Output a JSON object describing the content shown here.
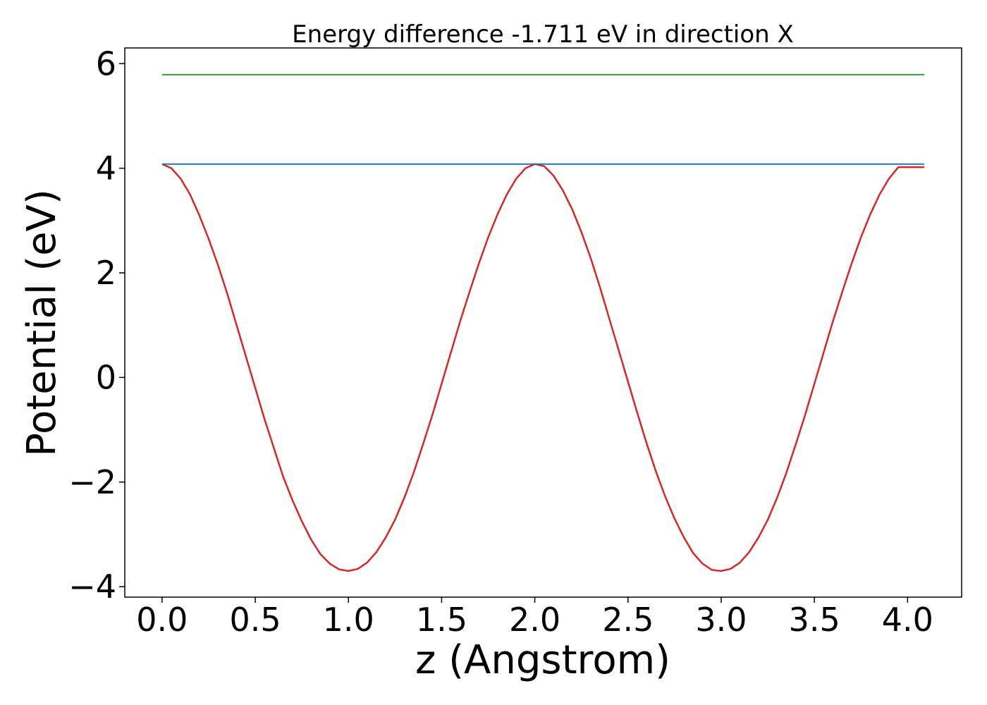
{
  "chart_data": {
    "type": "line",
    "title": "Energy difference -1.711 eV in direction X",
    "xlabel": "z (Angstrom)",
    "ylabel": "Potential (eV)",
    "xlim": [
      -0.2,
      4.29
    ],
    "ylim": [
      -4.2,
      6.3
    ],
    "xticks": [
      {
        "value": 0.0,
        "label": "0.0"
      },
      {
        "value": 0.5,
        "label": "0.5"
      },
      {
        "value": 1.0,
        "label": "1.0"
      },
      {
        "value": 1.5,
        "label": "1.5"
      },
      {
        "value": 2.0,
        "label": "2.0"
      },
      {
        "value": 2.5,
        "label": "2.5"
      },
      {
        "value": 3.0,
        "label": "3.0"
      },
      {
        "value": 3.5,
        "label": "3.5"
      },
      {
        "value": 4.0,
        "label": "4.0"
      }
    ],
    "yticks": [
      {
        "value": -4,
        "label": "−4"
      },
      {
        "value": -2,
        "label": "−2"
      },
      {
        "value": 0,
        "label": "0"
      },
      {
        "value": 2,
        "label": "2"
      },
      {
        "value": 4,
        "label": "4"
      },
      {
        "value": 6,
        "label": "6"
      }
    ],
    "grid": false,
    "series": [
      {
        "color": "#d62728",
        "x": [
          0.0,
          0.05,
          0.1,
          0.15,
          0.2,
          0.25,
          0.3,
          0.35,
          0.4,
          0.45,
          0.5,
          0.55,
          0.6,
          0.65,
          0.7,
          0.75,
          0.8,
          0.85,
          0.9,
          0.95,
          1.0,
          1.05,
          1.1,
          1.15,
          1.2,
          1.25,
          1.3,
          1.35,
          1.4,
          1.45,
          1.5,
          1.55,
          1.6,
          1.65,
          1.7,
          1.75,
          1.8,
          1.85,
          1.9,
          1.95,
          2.0,
          2.05,
          2.1,
          2.15,
          2.2,
          2.25,
          2.3,
          2.35,
          2.4,
          2.45,
          2.5,
          2.55,
          2.6,
          2.65,
          2.7,
          2.75,
          2.8,
          2.85,
          2.9,
          2.95,
          3.0,
          3.05,
          3.1,
          3.15,
          3.2,
          3.25,
          3.3,
          3.35,
          3.4,
          3.45,
          3.5,
          3.55,
          3.6,
          3.65,
          3.7,
          3.75,
          3.8,
          3.85,
          3.9,
          3.95,
          4.0,
          4.05,
          4.09
        ],
        "y": [
          4.08,
          4.0,
          3.8,
          3.5,
          3.1,
          2.65,
          2.15,
          1.6,
          1.0,
          0.4,
          -0.2,
          -0.8,
          -1.35,
          -1.9,
          -2.35,
          -2.75,
          -3.1,
          -3.38,
          -3.56,
          -3.67,
          -3.7,
          -3.66,
          -3.54,
          -3.34,
          -3.06,
          -2.72,
          -2.3,
          -1.82,
          -1.28,
          -0.72,
          -0.12,
          0.48,
          1.08,
          1.64,
          2.18,
          2.68,
          3.12,
          3.5,
          3.8,
          4.0,
          4.08,
          4.04,
          3.86,
          3.58,
          3.22,
          2.78,
          2.28,
          1.72,
          1.12,
          0.52,
          -0.08,
          -0.68,
          -1.26,
          -1.8,
          -2.28,
          -2.7,
          -3.06,
          -3.36,
          -3.56,
          -3.68,
          -3.7,
          -3.66,
          -3.54,
          -3.34,
          -3.06,
          -2.72,
          -2.3,
          -1.82,
          -1.28,
          -0.72,
          -0.12,
          0.48,
          1.08,
          1.64,
          2.18,
          2.68,
          3.12,
          3.5,
          3.8,
          4.02,
          4.02,
          4.02,
          4.02
        ]
      },
      {
        "color": "#1f77b4",
        "x": [
          0.0,
          4.09
        ],
        "y": [
          4.08,
          4.08
        ]
      },
      {
        "color": "#2ca02c",
        "x": [
          0.0,
          4.09
        ],
        "y": [
          5.79,
          5.79
        ]
      }
    ]
  }
}
